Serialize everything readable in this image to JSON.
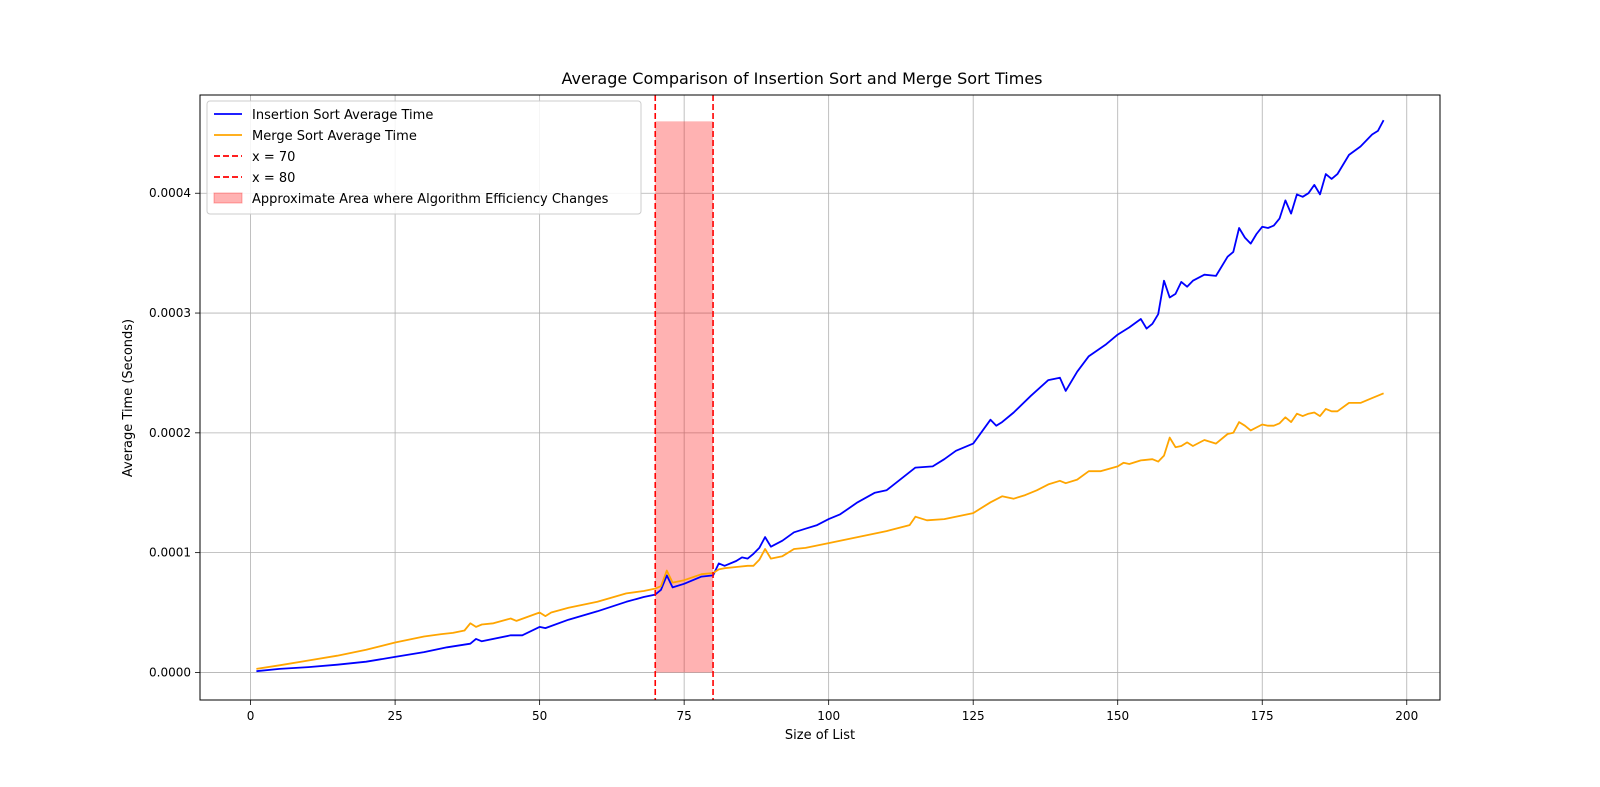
{
  "chart_data": {
    "type": "line",
    "title": "Average Comparison of Insertion Sort and Merge Sort Times",
    "xlabel": "Size of List",
    "ylabel": "Average Time (Seconds)",
    "xlim": [
      -8.75,
      205.75
    ],
    "ylim": [
      -2.3e-05,
      0.000482
    ],
    "x_ticks": [
      0,
      25,
      50,
      75,
      100,
      125,
      150,
      175,
      200
    ],
    "x_tick_labels": [
      "0",
      "25",
      "50",
      "75",
      "100",
      "125",
      "150",
      "175",
      "200"
    ],
    "y_ticks": [
      0,
      0.0001,
      0.0002,
      0.0003,
      0.0004
    ],
    "y_tick_labels": [
      "0.0000",
      "0.0001",
      "0.0002",
      "0.0003",
      "0.0004"
    ],
    "grid": true,
    "legend_position": "top-left",
    "series": [
      {
        "name": "Insertion Sort Average Time",
        "color": "#0000ff",
        "x": [
          1,
          5,
          10,
          15,
          20,
          25,
          30,
          34,
          38,
          39,
          40,
          45,
          47,
          50,
          51,
          55,
          60,
          65,
          68,
          70,
          71,
          72,
          73,
          75,
          78,
          80,
          81,
          82,
          84,
          85,
          86,
          87,
          88,
          89,
          90,
          92,
          94,
          96,
          98,
          100,
          102,
          105,
          108,
          110,
          115,
          118,
          120,
          122,
          125,
          128,
          129,
          130,
          132,
          135,
          138,
          140,
          141,
          143,
          145,
          148,
          150,
          152,
          154,
          155,
          156,
          157,
          158,
          159,
          160,
          161,
          162,
          163,
          165,
          167,
          169,
          170,
          171,
          172,
          173,
          174,
          175,
          176,
          177,
          178,
          179,
          180,
          181,
          182,
          183,
          184,
          185,
          186,
          187,
          188,
          190,
          192,
          194,
          195,
          196
        ],
        "values": [
          1e-06,
          3e-06,
          4.5e-06,
          6.5e-06,
          9e-06,
          1.3e-05,
          1.7e-05,
          2.1e-05,
          2.4e-05,
          2.8e-05,
          2.6e-05,
          3.1e-05,
          3.1e-05,
          3.8e-05,
          3.7e-05,
          4.4e-05,
          5.1e-05,
          5.9e-05,
          6.3e-05,
          6.5e-05,
          6.9e-05,
          8.1e-05,
          7.1e-05,
          7.4e-05,
          8e-05,
          8.1e-05,
          9.1e-05,
          8.9e-05,
          9.3e-05,
          9.6e-05,
          9.5e-05,
          9.9e-05,
          0.000104,
          0.000113,
          0.000105,
          0.00011,
          0.000117,
          0.00012,
          0.000123,
          0.000128,
          0.000132,
          0.000142,
          0.00015,
          0.000152,
          0.000171,
          0.000172,
          0.000178,
          0.000185,
          0.000191,
          0.000211,
          0.000206,
          0.000209,
          0.000217,
          0.000231,
          0.000244,
          0.000246,
          0.000235,
          0.000251,
          0.000264,
          0.000274,
          0.000282,
          0.000288,
          0.000295,
          0.000287,
          0.000291,
          0.000299,
          0.000327,
          0.000313,
          0.000316,
          0.000326,
          0.000322,
          0.000327,
          0.000332,
          0.000331,
          0.000347,
          0.000351,
          0.000371,
          0.000363,
          0.000358,
          0.000366,
          0.000372,
          0.000371,
          0.000373,
          0.000379,
          0.000394,
          0.000383,
          0.000399,
          0.000397,
          0.0004,
          0.000407,
          0.000399,
          0.000416,
          0.000412,
          0.000416,
          0.000432,
          0.000439,
          0.000449,
          0.000452,
          0.000461
        ]
      },
      {
        "name": "Merge Sort Average Time",
        "color": "#ffa500",
        "x": [
          1,
          5,
          10,
          15,
          20,
          25,
          30,
          33,
          35,
          37,
          38,
          39,
          40,
          42,
          45,
          46,
          50,
          51,
          52,
          55,
          60,
          65,
          68,
          70,
          71,
          72,
          73,
          75,
          78,
          80,
          81,
          82,
          84,
          86,
          87,
          88,
          89,
          90,
          92,
          94,
          96,
          100,
          105,
          110,
          114,
          115,
          117,
          120,
          125,
          128,
          130,
          132,
          134,
          136,
          138,
          140,
          141,
          143,
          145,
          147,
          150,
          151,
          152,
          154,
          156,
          157,
          158,
          159,
          160,
          161,
          162,
          163,
          165,
          167,
          169,
          170,
          171,
          172,
          173,
          175,
          176,
          177,
          178,
          179,
          180,
          181,
          182,
          183,
          184,
          185,
          186,
          187,
          188,
          190,
          192,
          194,
          195,
          196
        ],
        "values": [
          3e-06,
          6e-06,
          1e-05,
          1.4e-05,
          1.9e-05,
          2.5e-05,
          3e-05,
          3.2e-05,
          3.3e-05,
          3.5e-05,
          4.1e-05,
          3.8e-05,
          4e-05,
          4.1e-05,
          4.5e-05,
          4.3e-05,
          5e-05,
          4.7e-05,
          5e-05,
          5.4e-05,
          5.9e-05,
          6.6e-05,
          6.8e-05,
          7e-05,
          7.2e-05,
          8.5e-05,
          7.5e-05,
          7.7e-05,
          8.2e-05,
          8.3e-05,
          8.6e-05,
          8.7e-05,
          8.8e-05,
          8.9e-05,
          8.9e-05,
          9.4e-05,
          0.000103,
          9.5e-05,
          9.7e-05,
          0.000103,
          0.000104,
          0.000108,
          0.000113,
          0.000118,
          0.000123,
          0.00013,
          0.000127,
          0.000128,
          0.000133,
          0.000142,
          0.000147,
          0.000145,
          0.000148,
          0.000152,
          0.000157,
          0.00016,
          0.000158,
          0.000161,
          0.000168,
          0.000168,
          0.000172,
          0.000175,
          0.000174,
          0.000177,
          0.000178,
          0.000176,
          0.000181,
          0.000196,
          0.000188,
          0.000189,
          0.000192,
          0.000189,
          0.000194,
          0.000191,
          0.000199,
          0.0002,
          0.000209,
          0.000206,
          0.000202,
          0.000207,
          0.000206,
          0.000206,
          0.000208,
          0.000213,
          0.000209,
          0.000216,
          0.000214,
          0.000216,
          0.000217,
          0.000214,
          0.00022,
          0.000218,
          0.000218,
          0.000225,
          0.000225,
          0.000229,
          0.000231,
          0.000233
        ]
      }
    ],
    "vlines": [
      {
        "name": "x = 70",
        "x": 70,
        "color": "#ff0000",
        "style": "dashed"
      },
      {
        "name": "x = 80",
        "x": 80,
        "color": "#ff0000",
        "style": "dashed"
      }
    ],
    "shaded_region": {
      "name": "Approximate Area where Algorithm Efficiency Changes",
      "x_from": 70,
      "x_to": 80,
      "y_from": 0,
      "y_to": 0.00046,
      "color": "#ff0000"
    },
    "legend": [
      {
        "label": "Insertion Sort Average Time",
        "kind": "line",
        "color": "#0000ff"
      },
      {
        "label": "Merge Sort Average Time",
        "kind": "line",
        "color": "#ffa500"
      },
      {
        "label": "x = 70",
        "kind": "dashed",
        "color": "#ff0000"
      },
      {
        "label": "x = 80",
        "kind": "dashed",
        "color": "#ff0000"
      },
      {
        "label": "Approximate Area where Algorithm Efficiency Changes",
        "kind": "patch",
        "color": "#ff0000"
      }
    ]
  }
}
